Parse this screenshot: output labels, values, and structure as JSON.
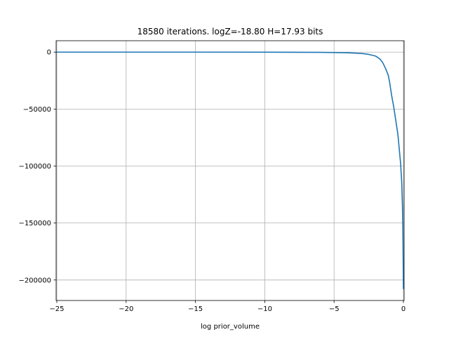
{
  "chart_data": {
    "type": "line",
    "title": "18580 iterations. logZ=-18.80 H=17.93 bits",
    "xlabel": "log prior_volume",
    "ylabel": "",
    "xlim": [
      -25.05,
      0.05
    ],
    "ylim": [
      -218000,
      10000
    ],
    "xticks": [
      -25,
      -20,
      -15,
      -10,
      -5,
      0
    ],
    "xtick_labels": [
      "−25",
      "−20",
      "−15",
      "−10",
      "−5",
      "0"
    ],
    "yticks": [
      0,
      -50000,
      -100000,
      -150000,
      -200000
    ],
    "ytick_labels": [
      "0",
      "−50000",
      "−100000",
      "−150000",
      "−200000"
    ],
    "grid": true,
    "series": [
      {
        "color": "#1f77b4",
        "x": [
          -25.05,
          -20,
          -15,
          -10,
          -8,
          -6,
          -5,
          -4,
          -3,
          -2.5,
          -2,
          -1.7,
          -1.5,
          -1.3,
          -1.1,
          -1.0,
          -0.85,
          -0.7,
          -0.55,
          -0.4,
          -0.3,
          -0.2,
          -0.12,
          -0.07,
          -0.04,
          -0.02,
          0
        ],
        "y": [
          -5,
          -10,
          -20,
          -50,
          -100,
          -200,
          -350,
          -600,
          -1200,
          -2000,
          -3500,
          -6000,
          -9000,
          -14000,
          -20000,
          -26000,
          -38000,
          -48000,
          -60000,
          -72000,
          -85000,
          -98000,
          -115000,
          -135000,
          -155000,
          -180000,
          -208000
        ]
      }
    ]
  }
}
